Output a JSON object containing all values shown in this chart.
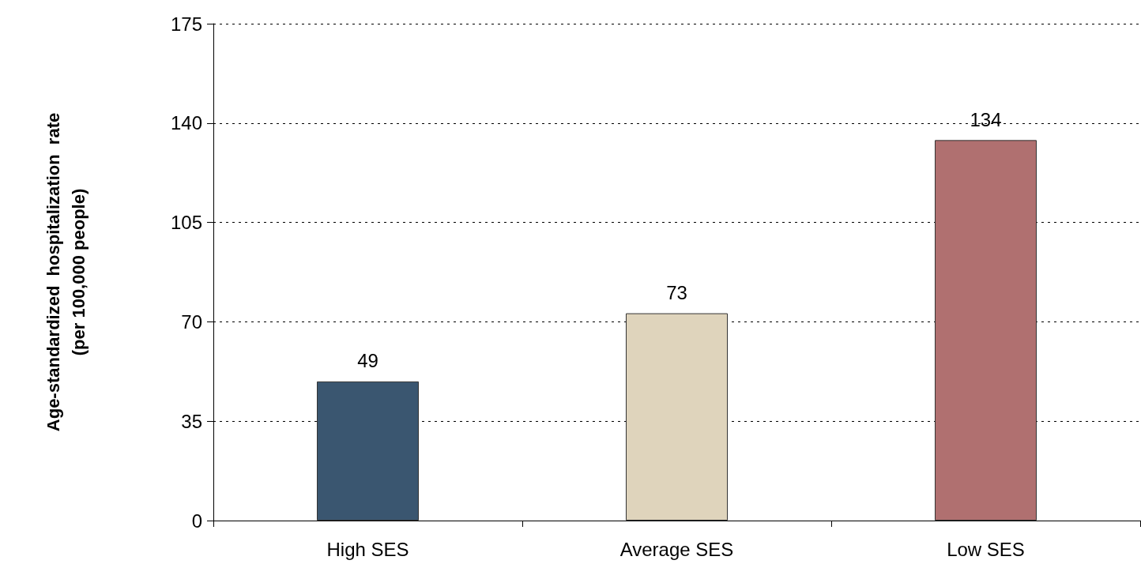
{
  "chart_data": {
    "type": "bar",
    "ylabel": "Age-standardized  hospitalization  rate\n(per 100,000 people)",
    "categories": [
      "High SES",
      "Average SES",
      "Low SES"
    ],
    "values": [
      49,
      73,
      134
    ],
    "colors": [
      "#3a5670",
      "#dfd4bc",
      "#b07070"
    ],
    "ylim": [
      0,
      175
    ],
    "yticks": [
      0,
      35,
      70,
      105,
      140,
      175
    ],
    "grid": "y",
    "data_labels": true
  }
}
